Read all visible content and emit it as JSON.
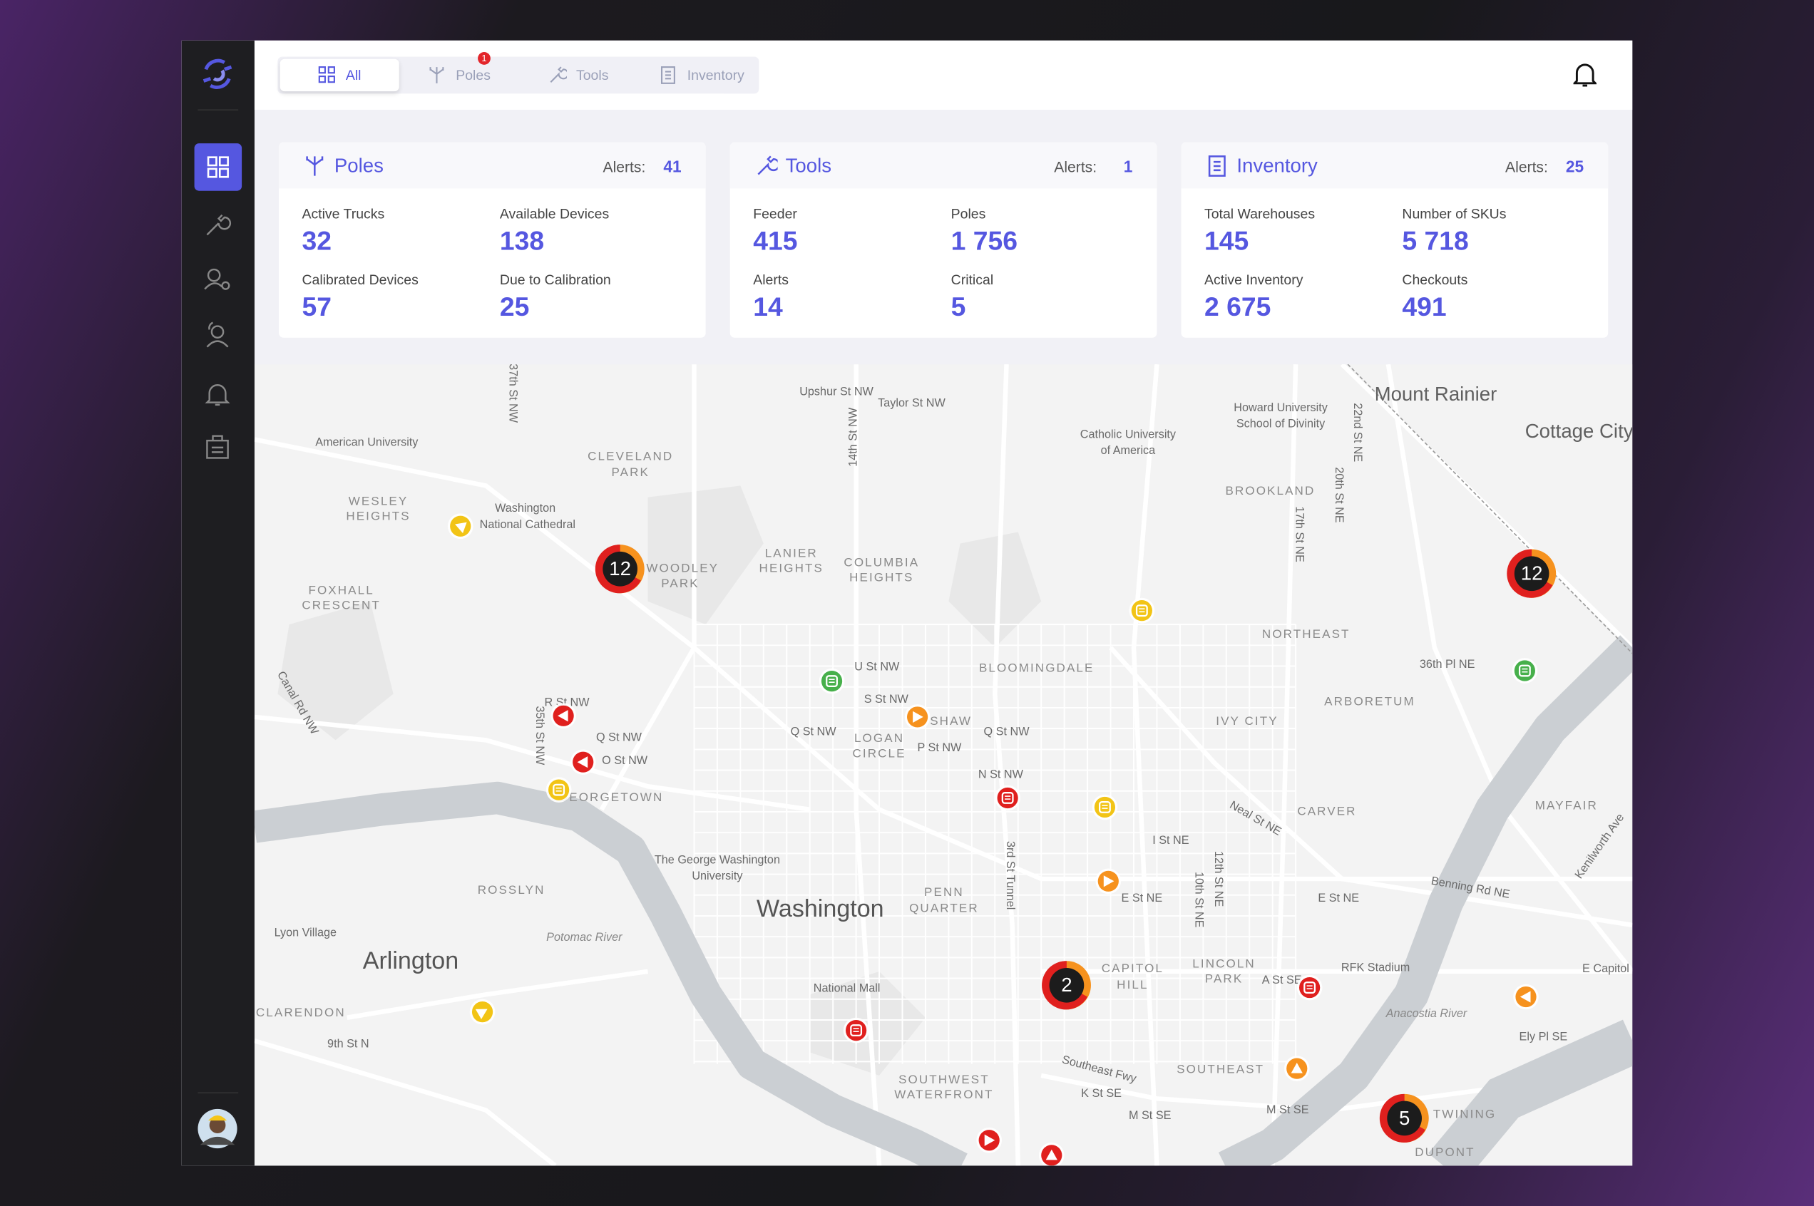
{
  "tabs": [
    {
      "label": "All"
    },
    {
      "label": "Poles",
      "badge": 1
    },
    {
      "label": "Tools"
    },
    {
      "label": "Inventory"
    }
  ],
  "cards": [
    {
      "title": "Poles",
      "alerts_label": "Alerts:",
      "alerts": 41,
      "stats": [
        {
          "label": "Active Trucks",
          "value": 32
        },
        {
          "label": "Available Devices",
          "value": 138
        },
        {
          "label": "Calibrated Devices",
          "value": 57
        },
        {
          "label": "Due to Calibration",
          "value": 25
        }
      ]
    },
    {
      "title": "Tools",
      "alerts_label": "Alerts:",
      "alerts": 1,
      "stats": [
        {
          "label": "Feeder",
          "value": 415
        },
        {
          "label": "Poles",
          "value": "1 756"
        },
        {
          "label": "Alerts",
          "value": 14
        },
        {
          "label": "Critical",
          "value": 5
        }
      ]
    },
    {
      "title": "Inventory",
      "alerts_label": "Alerts:",
      "alerts": 25,
      "stats": [
        {
          "label": "Total Warehouses",
          "value": 145
        },
        {
          "label": "Number of SKUs",
          "value": "5 718"
        },
        {
          "label": "Active Inventory",
          "value": "2 675"
        },
        {
          "label": "Checkouts",
          "value": 491
        }
      ]
    }
  ],
  "map": {
    "clusters": [
      12,
      12,
      2,
      5
    ],
    "labels": [
      "37th St NW",
      "Upshur St NW",
      "Taylor St NW",
      "14th St NW",
      "American University",
      "CLEVELAND",
      "PARK",
      "WESLEY",
      "HEIGHTS",
      "Washington",
      "National Cathedral",
      "FOXHALL",
      "CRESCENT",
      "WOODLEY",
      "PARK",
      "LANIER",
      "HEIGHTS",
      "COLUMBIA",
      "HEIGHTS",
      "Catholic University",
      "of America",
      "Howard University",
      "School of Divinity",
      "Mount Rainier",
      "Cottage City",
      "BROOKLAND",
      "NORTHEAST",
      "BLOOMINGDALE",
      "36th Pl NE",
      "ARBORETUM",
      "IVY CITY",
      "U St NW",
      "S St NW",
      "SHAW",
      "Q St NW",
      "Q St NW",
      "LOGAN",
      "CIRCLE",
      "P St NW",
      "Q St NW",
      "O St NW",
      "R St NW",
      "35th St NW",
      "Canal Rd NW",
      "N St NW",
      "GEORGETOWN",
      "MAYFAIR",
      "CARVER",
      "Neal St NE",
      "I St NE",
      "3rd St Tunnel",
      "The George Washington",
      "University",
      "ROSSLYN",
      "Washington",
      "PENN",
      "QUARTER",
      "E St NE",
      "E St NE",
      "Benning Rd NE",
      "Lyon Village",
      "Arlington",
      "Potomac River",
      "CAPITOL",
      "HILL",
      "LINCOLN",
      "PARK",
      "RFK Stadium",
      "E Capitol",
      "National Mall",
      "CLARENDON",
      "Anacostia River",
      "Ely Pl SE",
      "9th St N",
      "Southeast Fwy",
      "SOUTHEAST",
      "SOUTHWEST",
      "WATERFRONT",
      "K St SE",
      "M St SE",
      "TWINING",
      "DUPONT",
      "A St SE",
      "10th St NE",
      "12th St NE",
      "17th St NE",
      "20th St NE",
      "22nd St NE",
      "Kenilworth Ave",
      "M St SE"
    ]
  }
}
